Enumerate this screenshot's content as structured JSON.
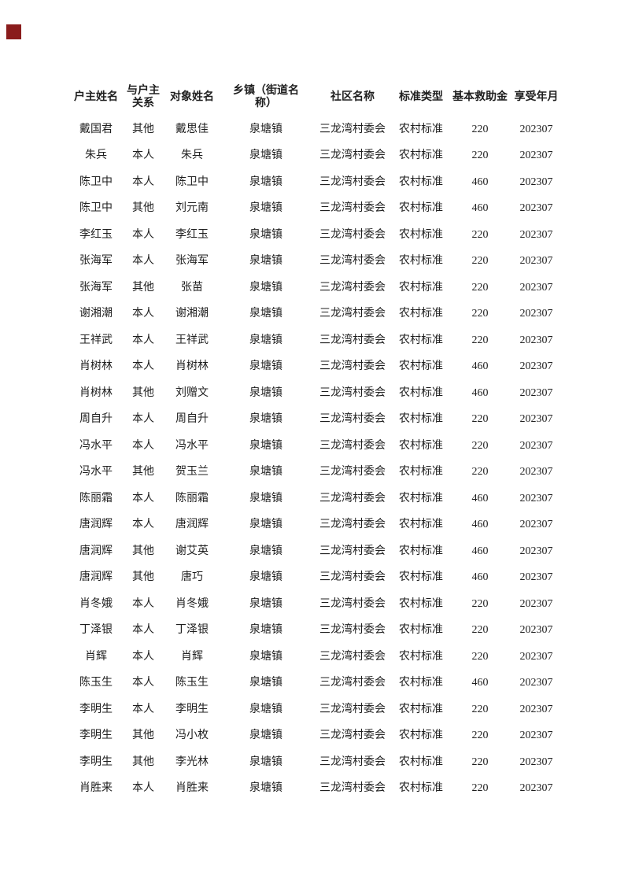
{
  "page": {
    "background": "#ffffff",
    "text_color": "#1f1f1f",
    "seal_color": "#8a1c1c"
  },
  "table": {
    "headers": [
      "户主姓名",
      "与户主关系",
      "对象姓名",
      "乡镇（街道名称）",
      "社区名称",
      "标准类型",
      "基本救助金",
      "享受年月"
    ],
    "rows": [
      [
        "戴国君",
        "其他",
        "戴思佳",
        "泉塘镇",
        "三龙湾村委会",
        "农村标准",
        "220",
        "202307"
      ],
      [
        "朱兵",
        "本人",
        "朱兵",
        "泉塘镇",
        "三龙湾村委会",
        "农村标准",
        "220",
        "202307"
      ],
      [
        "陈卫中",
        "本人",
        "陈卫中",
        "泉塘镇",
        "三龙湾村委会",
        "农村标准",
        "460",
        "202307"
      ],
      [
        "陈卫中",
        "其他",
        "刘元南",
        "泉塘镇",
        "三龙湾村委会",
        "农村标准",
        "460",
        "202307"
      ],
      [
        "李红玉",
        "本人",
        "李红玉",
        "泉塘镇",
        "三龙湾村委会",
        "农村标准",
        "220",
        "202307"
      ],
      [
        "张海军",
        "本人",
        "张海军",
        "泉塘镇",
        "三龙湾村委会",
        "农村标准",
        "220",
        "202307"
      ],
      [
        "张海军",
        "其他",
        "张苗",
        "泉塘镇",
        "三龙湾村委会",
        "农村标准",
        "220",
        "202307"
      ],
      [
        "谢湘潮",
        "本人",
        "谢湘潮",
        "泉塘镇",
        "三龙湾村委会",
        "农村标准",
        "220",
        "202307"
      ],
      [
        "王祥武",
        "本人",
        "王祥武",
        "泉塘镇",
        "三龙湾村委会",
        "农村标准",
        "220",
        "202307"
      ],
      [
        "肖树林",
        "本人",
        "肖树林",
        "泉塘镇",
        "三龙湾村委会",
        "农村标准",
        "460",
        "202307"
      ],
      [
        "肖树林",
        "其他",
        "刘赠文",
        "泉塘镇",
        "三龙湾村委会",
        "农村标准",
        "460",
        "202307"
      ],
      [
        "周自升",
        "本人",
        "周自升",
        "泉塘镇",
        "三龙湾村委会",
        "农村标准",
        "220",
        "202307"
      ],
      [
        "冯水平",
        "本人",
        "冯水平",
        "泉塘镇",
        "三龙湾村委会",
        "农村标准",
        "220",
        "202307"
      ],
      [
        "冯水平",
        "其他",
        "贺玉兰",
        "泉塘镇",
        "三龙湾村委会",
        "农村标准",
        "220",
        "202307"
      ],
      [
        "陈丽霜",
        "本人",
        "陈丽霜",
        "泉塘镇",
        "三龙湾村委会",
        "农村标准",
        "460",
        "202307"
      ],
      [
        "唐润辉",
        "本人",
        "唐润辉",
        "泉塘镇",
        "三龙湾村委会",
        "农村标准",
        "460",
        "202307"
      ],
      [
        "唐润辉",
        "其他",
        "谢艾英",
        "泉塘镇",
        "三龙湾村委会",
        "农村标准",
        "460",
        "202307"
      ],
      [
        "唐润辉",
        "其他",
        "唐巧",
        "泉塘镇",
        "三龙湾村委会",
        "农村标准",
        "460",
        "202307"
      ],
      [
        "肖冬娥",
        "本人",
        "肖冬娥",
        "泉塘镇",
        "三龙湾村委会",
        "农村标准",
        "220",
        "202307"
      ],
      [
        "丁泽银",
        "本人",
        "丁泽银",
        "泉塘镇",
        "三龙湾村委会",
        "农村标准",
        "220",
        "202307"
      ],
      [
        "肖辉",
        "本人",
        "肖辉",
        "泉塘镇",
        "三龙湾村委会",
        "农村标准",
        "220",
        "202307"
      ],
      [
        "陈玉生",
        "本人",
        "陈玉生",
        "泉塘镇",
        "三龙湾村委会",
        "农村标准",
        "460",
        "202307"
      ],
      [
        "李明生",
        "本人",
        "李明生",
        "泉塘镇",
        "三龙湾村委会",
        "农村标准",
        "220",
        "202307"
      ],
      [
        "李明生",
        "其他",
        "冯小枚",
        "泉塘镇",
        "三龙湾村委会",
        "农村标准",
        "220",
        "202307"
      ],
      [
        "李明生",
        "其他",
        "李光林",
        "泉塘镇",
        "三龙湾村委会",
        "农村标准",
        "220",
        "202307"
      ],
      [
        "肖胜来",
        "本人",
        "肖胜来",
        "泉塘镇",
        "三龙湾村委会",
        "农村标准",
        "220",
        "202307"
      ]
    ]
  }
}
